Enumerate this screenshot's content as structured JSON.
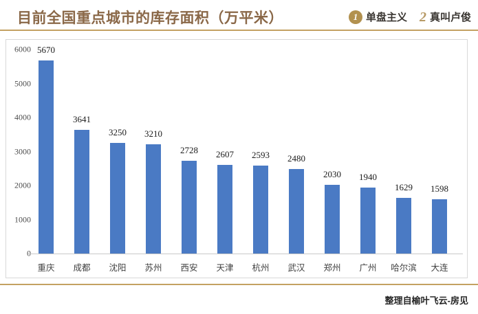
{
  "header": {
    "title": "目前全国重点城市的库存面积（万平米）",
    "logo1_icon": "1",
    "logo1_text": "单盘主义",
    "logo2_icon": "2",
    "logo2_text": "真叫卢俊"
  },
  "chart_data": {
    "type": "bar",
    "title": "目前全国重点城市的库存面积（万平米）",
    "categories": [
      "重庆",
      "成都",
      "沈阳",
      "苏州",
      "西安",
      "天津",
      "杭州",
      "武汉",
      "郑州",
      "广州",
      "哈尔滨",
      "大连"
    ],
    "values": [
      5670,
      3641,
      3250,
      3210,
      2728,
      2607,
      2593,
      2480,
      2030,
      1940,
      1629,
      1598
    ],
    "xlabel": "",
    "ylabel": "",
    "ylim": [
      0,
      6000
    ],
    "yticks": [
      0,
      1000,
      2000,
      3000,
      4000,
      5000,
      6000
    ],
    "grid": false,
    "legend": false,
    "data_labels": true,
    "bar_color": "#4a7ac4"
  },
  "footer": {
    "credit": "整理自榆叶飞云-房见"
  },
  "colors": {
    "accent_gold": "#c3a161",
    "title_brown": "#8a6848",
    "bar_blue": "#4a7ac4"
  }
}
